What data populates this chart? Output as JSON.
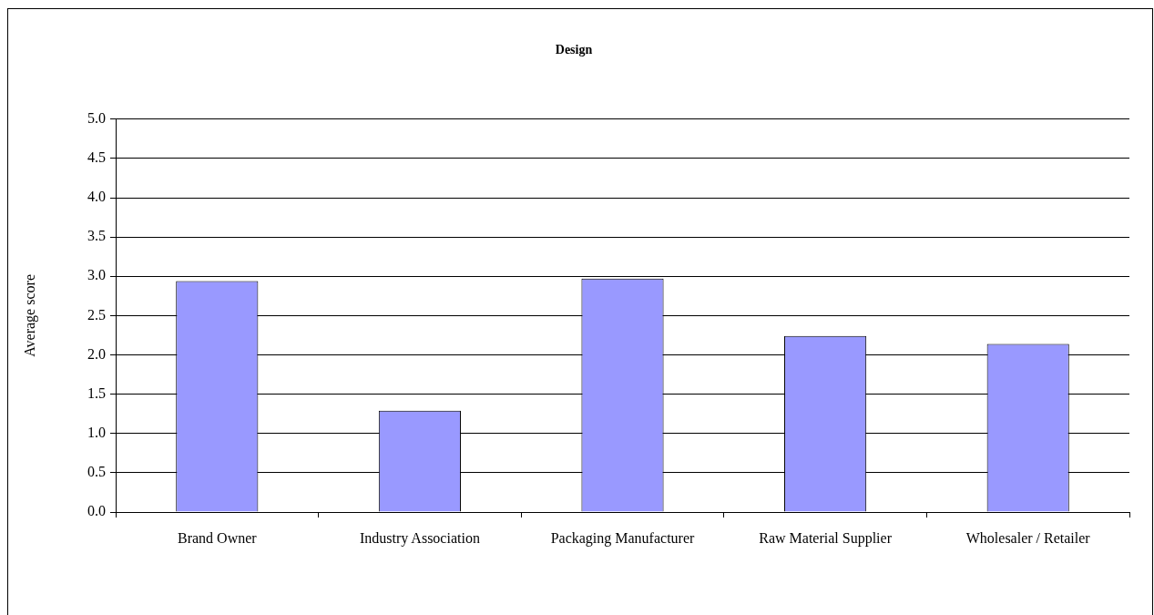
{
  "chart_data": {
    "type": "bar",
    "title": "Design",
    "ylabel": "Average score",
    "categories": [
      "Brand Owner",
      "Industry Association",
      "Packaging Manufacturer",
      "Raw Material Supplier",
      "Wholesaler / Retailer"
    ],
    "values": [
      2.94,
      1.29,
      2.97,
      2.24,
      2.14
    ],
    "color": "#9999ff",
    "ylim": [
      0,
      5
    ],
    "yticks": [
      {
        "value": 0,
        "label": "0.0"
      },
      {
        "value": 0.5,
        "label": "0.5"
      },
      {
        "value": 1,
        "label": "1.0"
      },
      {
        "value": 1.5,
        "label": "1.5"
      },
      {
        "value": 2,
        "label": "2.0"
      },
      {
        "value": 2.5,
        "label": "2.5"
      },
      {
        "value": 3,
        "label": "3.0"
      },
      {
        "value": 3.5,
        "label": "3.5"
      },
      {
        "value": 4,
        "label": "4.0"
      },
      {
        "value": 4.5,
        "label": "4.5"
      },
      {
        "value": 5,
        "label": "5.0"
      }
    ],
    "grid": "y"
  }
}
